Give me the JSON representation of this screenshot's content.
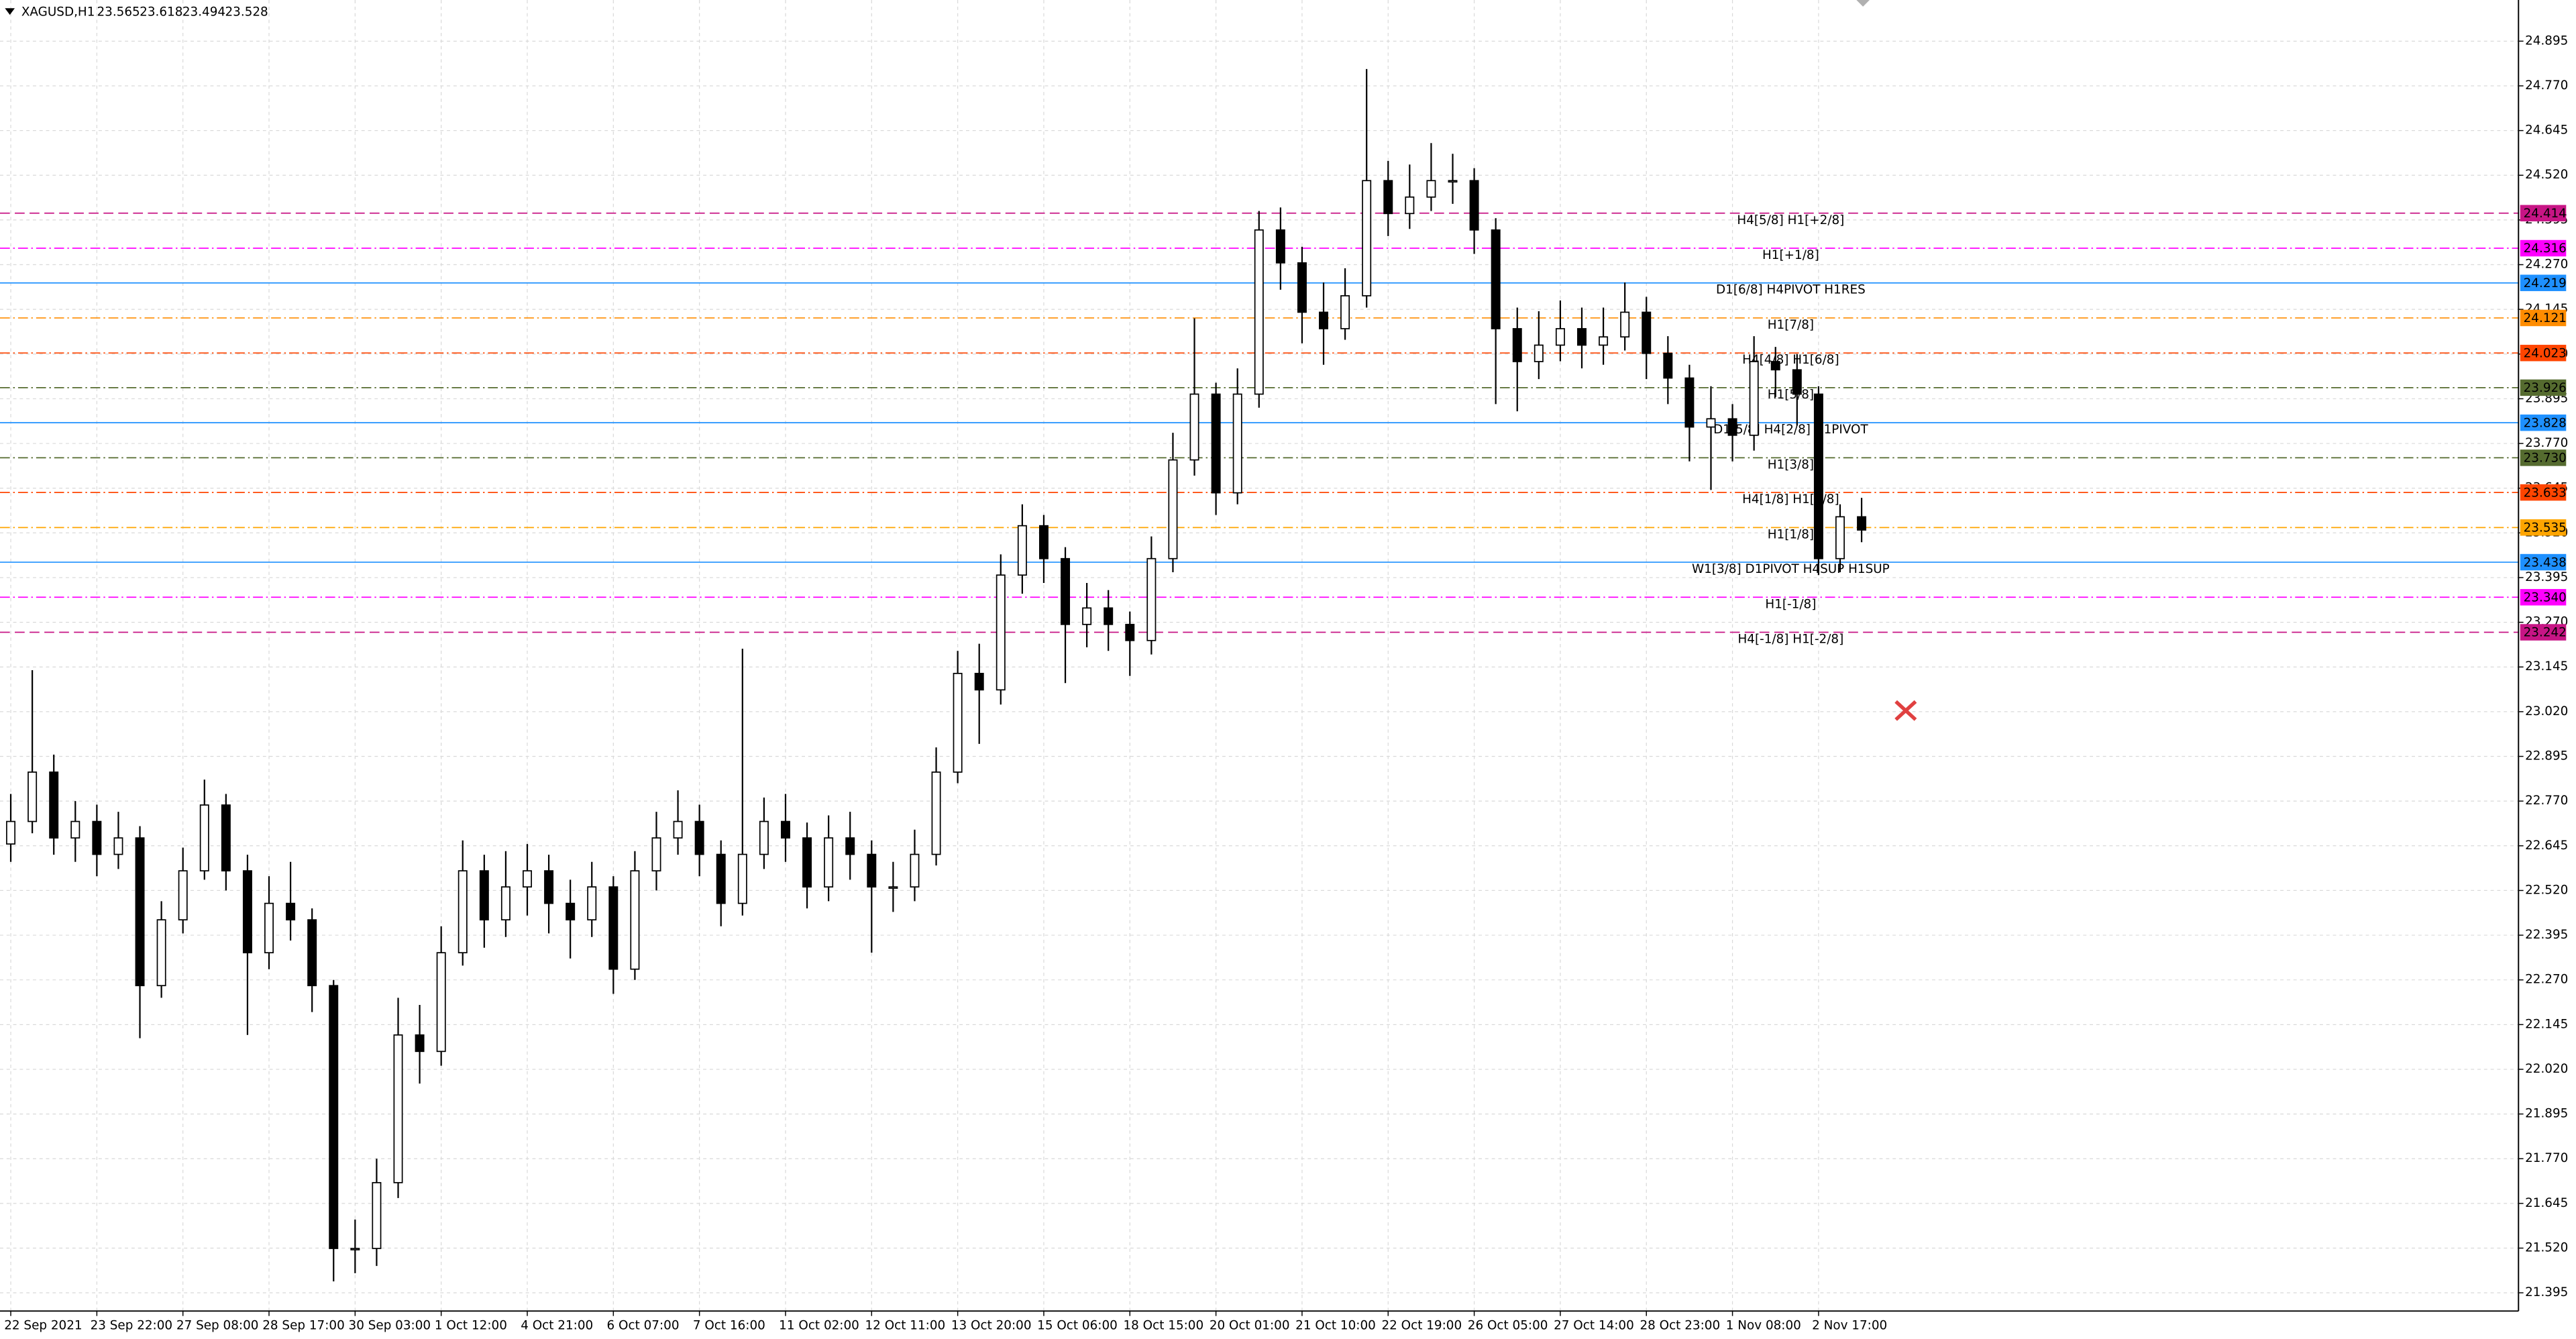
{
  "chart_data": {
    "type": "candlestick",
    "title": "XAGUSD,H1",
    "categories": [
      "22 Sep 2021",
      null,
      null,
      null,
      "23 Sep 22:00",
      null,
      null,
      null,
      "27 Sep 08:00",
      null,
      null,
      null,
      "28 Sep 17:00",
      null,
      null,
      null,
      "30 Sep 03:00",
      null,
      null,
      null,
      "1 Oct 12:00",
      null,
      null,
      null,
      "4 Oct 21:00",
      null,
      null,
      null,
      "6 Oct 07:00",
      null,
      null,
      null,
      "7 Oct 16:00",
      null,
      null,
      null,
      "11 Oct 02:00",
      null,
      null,
      null,
      "12 Oct 11:00",
      null,
      null,
      null,
      "13 Oct 20:00",
      null,
      null,
      null,
      "15 Oct 06:00",
      null,
      null,
      null,
      "18 Oct 15:00",
      null,
      null,
      null,
      "20 Oct 01:00",
      null,
      null,
      null,
      "21 Oct 10:00",
      null,
      null,
      null,
      "22 Oct 19:00",
      null,
      null,
      null,
      "26 Oct 05:00",
      null,
      null,
      null,
      "27 Oct 14:00",
      null,
      null,
      null,
      "28 Oct 23:00",
      null,
      null,
      null,
      "1 Nov 08:00",
      null,
      null,
      null,
      "2 Nov 17:00",
      null,
      null
    ],
    "open": [
      22.65,
      22.713,
      22.851,
      22.667,
      22.713,
      22.621,
      22.667,
      22.254,
      22.438,
      22.575,
      22.759,
      22.575,
      22.346,
      22.484,
      22.438,
      22.254,
      21.519,
      21.519,
      21.703,
      22.116,
      22.07,
      22.346,
      22.575,
      22.438,
      22.53,
      22.575,
      22.484,
      22.438,
      22.53,
      22.3,
      22.575,
      22.667,
      22.713,
      22.621,
      22.484,
      22.621,
      22.713,
      22.667,
      22.53,
      22.667,
      22.621,
      22.53,
      22.53,
      22.621,
      22.851,
      23.127,
      23.081,
      23.402,
      23.54,
      23.448,
      23.264,
      23.31,
      23.264,
      23.219,
      23.448,
      23.724,
      23.908,
      23.632,
      23.908,
      24.367,
      24.275,
      24.137,
      24.091,
      24.183,
      24.505,
      24.413,
      24.459,
      24.505,
      24.505,
      24.367,
      24.091,
      23.999,
      24.045,
      24.091,
      24.045,
      24.068,
      24.137,
      24.022,
      23.953,
      23.816,
      23.839,
      23.793,
      23.999,
      23.976,
      23.908,
      23.448,
      23.565
    ],
    "high": [
      22.79,
      23.136,
      22.9,
      22.77,
      22.76,
      22.74,
      22.7,
      22.49,
      22.64,
      22.83,
      22.79,
      22.62,
      22.56,
      22.6,
      22.47,
      22.27,
      21.6,
      21.77,
      22.22,
      22.2,
      22.42,
      22.66,
      22.62,
      22.63,
      22.65,
      22.62,
      22.55,
      22.6,
      22.56,
      22.63,
      22.74,
      22.8,
      22.76,
      22.66,
      23.196,
      22.78,
      22.79,
      22.71,
      22.73,
      22.74,
      22.66,
      22.6,
      22.69,
      22.92,
      23.19,
      23.21,
      23.46,
      23.6,
      23.57,
      23.48,
      23.38,
      23.36,
      23.3,
      23.51,
      23.8,
      24.12,
      23.94,
      23.98,
      24.42,
      24.43,
      24.32,
      24.22,
      24.26,
      24.817,
      24.56,
      24.55,
      24.61,
      24.58,
      24.54,
      24.4,
      24.15,
      24.14,
      24.17,
      24.15,
      24.15,
      24.22,
      24.18,
      24.07,
      23.99,
      23.93,
      23.88,
      24.07,
      24.04,
      24.02,
      23.93,
      23.6,
      23.618
    ],
    "low": [
      22.6,
      22.68,
      22.62,
      22.6,
      22.56,
      22.58,
      22.107,
      22.22,
      22.4,
      22.55,
      22.52,
      22.116,
      22.3,
      22.38,
      22.18,
      21.427,
      21.45,
      21.47,
      21.66,
      21.98,
      22.03,
      22.31,
      22.36,
      22.39,
      22.45,
      22.4,
      22.33,
      22.39,
      22.231,
      22.27,
      22.52,
      22.62,
      22.56,
      22.42,
      22.45,
      22.58,
      22.6,
      22.47,
      22.49,
      22.55,
      22.346,
      22.46,
      22.49,
      22.59,
      22.82,
      22.93,
      23.04,
      23.35,
      23.38,
      23.1,
      23.2,
      23.19,
      23.12,
      23.18,
      23.41,
      23.68,
      23.57,
      23.6,
      23.87,
      24.2,
      24.05,
      23.99,
      24.06,
      24.15,
      24.35,
      24.37,
      24.42,
      24.44,
      24.3,
      23.88,
      23.86,
      23.95,
      24.0,
      23.98,
      23.99,
      24.03,
      23.95,
      23.88,
      23.72,
      23.64,
      23.72,
      23.75,
      23.9,
      23.82,
      23.402,
      23.41,
      23.494
    ],
    "close": [
      22.713,
      22.851,
      22.667,
      22.713,
      22.621,
      22.667,
      22.254,
      22.438,
      22.575,
      22.759,
      22.575,
      22.346,
      22.484,
      22.438,
      22.254,
      21.519,
      21.519,
      21.703,
      22.116,
      22.07,
      22.346,
      22.575,
      22.438,
      22.53,
      22.575,
      22.484,
      22.438,
      22.53,
      22.3,
      22.575,
      22.667,
      22.713,
      22.621,
      22.484,
      22.621,
      22.713,
      22.667,
      22.53,
      22.667,
      22.621,
      22.53,
      22.53,
      22.621,
      22.851,
      23.127,
      23.081,
      23.402,
      23.54,
      23.448,
      23.264,
      23.31,
      23.264,
      23.219,
      23.448,
      23.724,
      23.908,
      23.632,
      23.908,
      24.367,
      24.275,
      24.137,
      24.091,
      24.183,
      24.505,
      24.413,
      24.459,
      24.505,
      24.505,
      24.367,
      24.091,
      23.999,
      24.045,
      24.091,
      24.045,
      24.068,
      24.137,
      24.022,
      23.953,
      23.816,
      23.839,
      23.793,
      23.999,
      23.976,
      23.908,
      23.448,
      23.565,
      23.528
    ],
    "bull_color": "#ffffff",
    "bear_color": "#000000",
    "wick_color": "#000000",
    "ylim": [
      21.344,
      25.01
    ],
    "yticks": [
      21.395,
      {
        "value": 21.52,
        "label": "21.520"
      },
      21.645,
      {
        "value": 21.77,
        "label": "21.770"
      },
      21.895,
      {
        "value": 22.02,
        "label": "22.020"
      },
      22.145,
      {
        "value": 22.27,
        "label": "22.270"
      },
      22.395,
      {
        "value": 22.52,
        "label": "22.520"
      },
      22.645,
      {
        "value": 22.77,
        "label": "22.770"
      },
      22.895,
      {
        "value": 23.02,
        "label": "23.020"
      },
      23.145,
      {
        "value": 23.27,
        "label": "23.270"
      },
      23.395,
      {
        "value": 23.52,
        "label": "23.520"
      },
      23.645,
      {
        "value": 23.77,
        "label": "23.770"
      },
      23.895,
      {
        "value": 24.02,
        "label": "24.020"
      },
      24.145,
      {
        "value": 24.27,
        "label": "24.270"
      },
      24.395,
      {
        "value": 24.52,
        "label": "24.520"
      },
      24.645,
      {
        "value": 24.77,
        "label": "24.770"
      },
      24.895
    ],
    "grid": true,
    "levels": [
      {
        "label": "H4[5/8] H1[+2/8]",
        "price": {
          "value": 24.414,
          "label": "24.414"
        },
        "color": "#c71585",
        "style": "dash"
      },
      {
        "label": "H1[+1/8]",
        "price": {
          "value": 24.316,
          "label": "24.316"
        },
        "color": "#ff00ff",
        "style": "dashdot"
      },
      {
        "label": "D1[6/8] H4PIVOT H1RES",
        "price": {
          "value": 24.219,
          "label": "24.219"
        },
        "color": "#1e90ff",
        "style": "solid"
      },
      {
        "label": "H1[7/8]",
        "price": {
          "value": 24.121,
          "label": "24.121"
        },
        "color": "#ff8c00",
        "style": "dashdot"
      },
      {
        "label": "H4[4/8] H1[6/8]",
        "price": {
          "value": 24.023,
          "label": "24.023"
        },
        "color": "#ff4500",
        "style": "dashdot"
      },
      {
        "label": "H1[5/8]",
        "price": {
          "value": 23.926,
          "label": "23.926"
        },
        "color": "#556b2f",
        "style": "dashdot"
      },
      {
        "label": "D1[5/8] H4[2/8] H1PIVOT",
        "price": {
          "value": 23.828,
          "label": "23.828"
        },
        "color": "#1e90ff",
        "style": "solid"
      },
      {
        "label": "H1[3/8]",
        "price": {
          "value": 23.73,
          "label": "23.730"
        },
        "color": "#556b2f",
        "style": "dashdot"
      },
      {
        "label": "H4[1/8] H1[2/8]",
        "price": {
          "value": 23.633,
          "label": "23.633"
        },
        "color": "#ff4500",
        "style": "dashdot"
      },
      {
        "label": "H1[1/8]",
        "price": {
          "value": 23.535,
          "label": "23.535"
        },
        "color": "#ffa500",
        "style": "dashdot"
      },
      {
        "label": "W1[3/8] D1PIVOT H4SUP H1SUP",
        "price": {
          "value": 23.438,
          "label": "23.438"
        },
        "color": "#1e90ff",
        "style": "solid"
      },
      {
        "label": "H1[-1/8]",
        "price": {
          "value": 23.34,
          "label": "23.340"
        },
        "color": "#ff00ff",
        "style": "dashdot"
      },
      {
        "label": "H4[-1/8] H1[-2/8]",
        "price": 23.242,
        "color": "#c71585",
        "style": "dash"
      }
    ]
  }
}
